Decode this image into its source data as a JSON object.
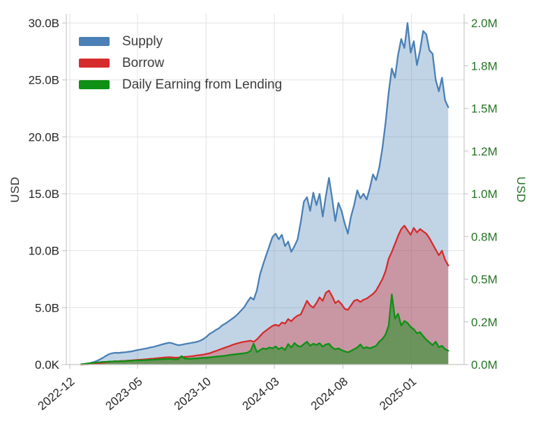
{
  "chart": {
    "left_axis_title": "USD",
    "right_axis_title": "USD",
    "colors": {
      "supply": "#4a80b5",
      "borrow": "#d62b2b",
      "earning": "#0e9015",
      "grid": "#e2e2e2",
      "axis_line": "#c8c8c8",
      "left_text": "#262626",
      "right_text": "#267326"
    }
  },
  "chart_data": {
    "type": "area",
    "title": "",
    "legend_position": "top-left",
    "grid": true,
    "x_tick_labels": [
      "2022-12",
      "2023-05",
      "2023-10",
      "2024-03",
      "2024-08",
      "2025-01"
    ],
    "left_axis": {
      "label": "USD",
      "tick_labels": [
        "0.0K",
        "5.0B",
        "10.0B",
        "15.0B",
        "20.0B",
        "25.0B",
        "30.0B"
      ],
      "tick_values_billions": [
        0,
        5,
        10,
        15,
        20,
        25,
        30
      ],
      "range_billions": [
        0,
        30
      ]
    },
    "right_axis": {
      "label": "USD",
      "tick_labels": [
        "0.0M",
        "0.2M",
        "0.5M",
        "0.8M",
        "1.0M",
        "1.2M",
        "1.5M",
        "1.8M",
        "2.0M"
      ],
      "tick_values_millions": [
        0,
        0.25,
        0.5,
        0.75,
        1,
        1.25,
        1.5,
        1.75,
        2
      ],
      "range_millions": [
        0,
        2
      ]
    },
    "x_start_date": "2022-12-26",
    "x_interval_days": 7,
    "series": [
      {
        "name": "Supply",
        "axis": "left",
        "unit": "USD billions",
        "color": "#4a80b5",
        "fill_opacity": 0.34,
        "values": [
          0.02,
          0.05,
          0.09,
          0.14,
          0.22,
          0.32,
          0.45,
          0.6,
          0.78,
          0.92,
          1.0,
          1.04,
          1.02,
          1.06,
          1.08,
          1.12,
          1.15,
          1.22,
          1.28,
          1.32,
          1.38,
          1.42,
          1.5,
          1.55,
          1.62,
          1.7,
          1.78,
          1.85,
          1.92,
          1.88,
          1.78,
          1.7,
          1.74,
          1.8,
          1.84,
          1.9,
          1.94,
          2.0,
          2.1,
          2.25,
          2.45,
          2.7,
          2.85,
          3.05,
          3.2,
          3.45,
          3.6,
          3.8,
          4.0,
          4.2,
          4.45,
          4.75,
          5.05,
          5.5,
          5.9,
          5.7,
          6.5,
          7.9,
          8.8,
          9.6,
          10.4,
          11.2,
          11.5,
          11.0,
          11.4,
          10.4,
          10.8,
          9.9,
          10.4,
          11.0,
          12.5,
          14.3,
          14.7,
          13.5,
          15.1,
          14.0,
          15.0,
          13.0,
          14.8,
          16.4,
          14.6,
          12.6,
          14.2,
          13.5,
          12.4,
          11.5,
          13.0,
          14.0,
          15.3,
          14.6,
          15.0,
          14.5,
          15.5,
          16.7,
          16.2,
          17.3,
          19.0,
          21.2,
          23.9,
          26.0,
          25.2,
          27.2,
          28.6,
          27.8,
          30.0,
          27.4,
          28.4,
          26.3,
          27.6,
          29.3,
          29.0,
          27.6,
          27.3,
          25.0,
          24.0,
          25.2,
          23.2,
          22.6
        ]
      },
      {
        "name": "Borrow",
        "axis": "left",
        "unit": "USD billions",
        "color": "#d62b2b",
        "fill_opacity": 0.36,
        "values": [
          0.0,
          0.01,
          0.02,
          0.04,
          0.06,
          0.09,
          0.12,
          0.16,
          0.2,
          0.24,
          0.27,
          0.29,
          0.3,
          0.32,
          0.33,
          0.35,
          0.37,
          0.39,
          0.41,
          0.43,
          0.45,
          0.47,
          0.5,
          0.52,
          0.55,
          0.58,
          0.6,
          0.63,
          0.65,
          0.63,
          0.6,
          0.62,
          0.65,
          0.68,
          0.7,
          0.73,
          0.76,
          0.8,
          0.84,
          0.88,
          0.94,
          1.0,
          1.1,
          1.2,
          1.3,
          1.4,
          1.5,
          1.6,
          1.7,
          1.8,
          1.88,
          1.95,
          2.0,
          2.05,
          2.1,
          2.0,
          2.2,
          2.5,
          2.8,
          3.0,
          3.2,
          3.4,
          3.5,
          3.4,
          3.7,
          3.6,
          4.0,
          3.8,
          4.1,
          4.3,
          4.4,
          5.0,
          5.6,
          5.2,
          5.0,
          5.4,
          5.9,
          5.6,
          6.3,
          6.5,
          6.0,
          5.4,
          5.6,
          5.3,
          4.9,
          4.8,
          5.2,
          5.6,
          5.7,
          5.5,
          5.7,
          5.8,
          6.0,
          6.2,
          6.5,
          7.0,
          7.5,
          8.2,
          9.3,
          9.9,
          10.6,
          11.3,
          11.9,
          12.2,
          11.8,
          11.4,
          12.0,
          11.6,
          11.9,
          11.7,
          11.5,
          11.1,
          10.6,
          10.1,
          9.6,
          10.0,
          9.2,
          8.7
        ]
      },
      {
        "name": "Daily Earning from Lending",
        "axis": "right",
        "unit": "USD millions",
        "color": "#0e9015",
        "fill_opacity": 0.5,
        "values": [
          0.002,
          0.004,
          0.006,
          0.008,
          0.01,
          0.012,
          0.014,
          0.016,
          0.016,
          0.018,
          0.018,
          0.02,
          0.018,
          0.02,
          0.02,
          0.022,
          0.022,
          0.024,
          0.024,
          0.025,
          0.026,
          0.026,
          0.028,
          0.028,
          0.03,
          0.03,
          0.032,
          0.032,
          0.034,
          0.032,
          0.03,
          0.032,
          0.05,
          0.036,
          0.034,
          0.034,
          0.036,
          0.036,
          0.038,
          0.04,
          0.04,
          0.042,
          0.044,
          0.046,
          0.048,
          0.05,
          0.052,
          0.055,
          0.058,
          0.06,
          0.062,
          0.064,
          0.066,
          0.07,
          0.08,
          0.122,
          0.073,
          0.085,
          0.095,
          0.09,
          0.1,
          0.095,
          0.106,
          0.09,
          0.1,
          0.085,
          0.12,
          0.1,
          0.126,
          0.11,
          0.105,
          0.12,
          0.134,
          0.11,
          0.122,
          0.115,
          0.125,
          0.105,
          0.118,
          0.122,
          0.1,
          0.089,
          0.095,
          0.085,
          0.077,
          0.072,
          0.08,
          0.09,
          0.1,
          0.118,
          0.095,
          0.102,
          0.095,
          0.102,
          0.11,
          0.134,
          0.15,
          0.175,
          0.228,
          0.411,
          0.268,
          0.297,
          0.228,
          0.255,
          0.244,
          0.22,
          0.207,
          0.183,
          0.19,
          0.167,
          0.146,
          0.13,
          0.114,
          0.134,
          0.102,
          0.11,
          0.09,
          0.081
        ]
      }
    ]
  }
}
